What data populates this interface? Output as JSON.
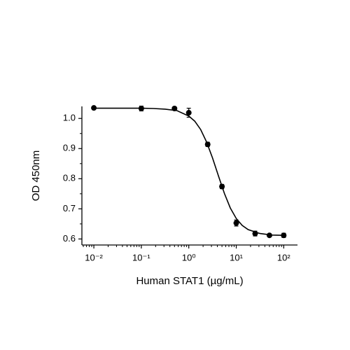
{
  "chart_data": {
    "type": "scatter",
    "x_label": "Human STAT1 (µg/mL)",
    "y_label": "OD 450nm",
    "log_x": true,
    "xlim": [
      0.0056,
      195
    ],
    "ylim": [
      0.58,
      1.04
    ],
    "xticks": [
      {
        "value": 0.01,
        "label": "10⁻²"
      },
      {
        "value": 0.1,
        "label": "10⁻¹"
      },
      {
        "value": 1,
        "label": "10⁰"
      },
      {
        "value": 10,
        "label": "10¹"
      },
      {
        "value": 100,
        "label": "10²"
      }
    ],
    "yticks": [
      0.6,
      0.7,
      0.8,
      0.9,
      {
        "value": 1,
        "label": "1.0"
      }
    ],
    "series": [
      {
        "color": "#000000",
        "x": [
          0.01,
          0.1,
          0.5,
          1,
          2.5,
          5,
          10,
          25,
          50,
          100
        ],
        "values": [
          1.035,
          1.033,
          1.033,
          1.019,
          0.914,
          0.774,
          0.653,
          0.618,
          0.612,
          0.612
        ],
        "errors": [
          0.003,
          0.008,
          0.003,
          0.015,
          0.007,
          0.007,
          0.01,
          0.008,
          0.003,
          0.007
        ]
      }
    ],
    "curve": {
      "color": "#000000",
      "x": [
        0.01,
        0.0178,
        0.0316,
        0.0562,
        0.1,
        0.178,
        0.316,
        0.562,
        1,
        1.333,
        1.778,
        2.371,
        3.162,
        4.217,
        5.623,
        7.499,
        10,
        13.34,
        17.78,
        31.62,
        56.23,
        100
      ],
      "values": [
        1.034,
        1.034,
        1.034,
        1.034,
        1.034,
        1.033,
        1.031,
        1.026,
        1.008,
        0.991,
        0.963,
        0.922,
        0.869,
        0.809,
        0.751,
        0.703,
        0.668,
        0.645,
        0.631,
        0.618,
        0.613,
        0.612
      ]
    }
  }
}
